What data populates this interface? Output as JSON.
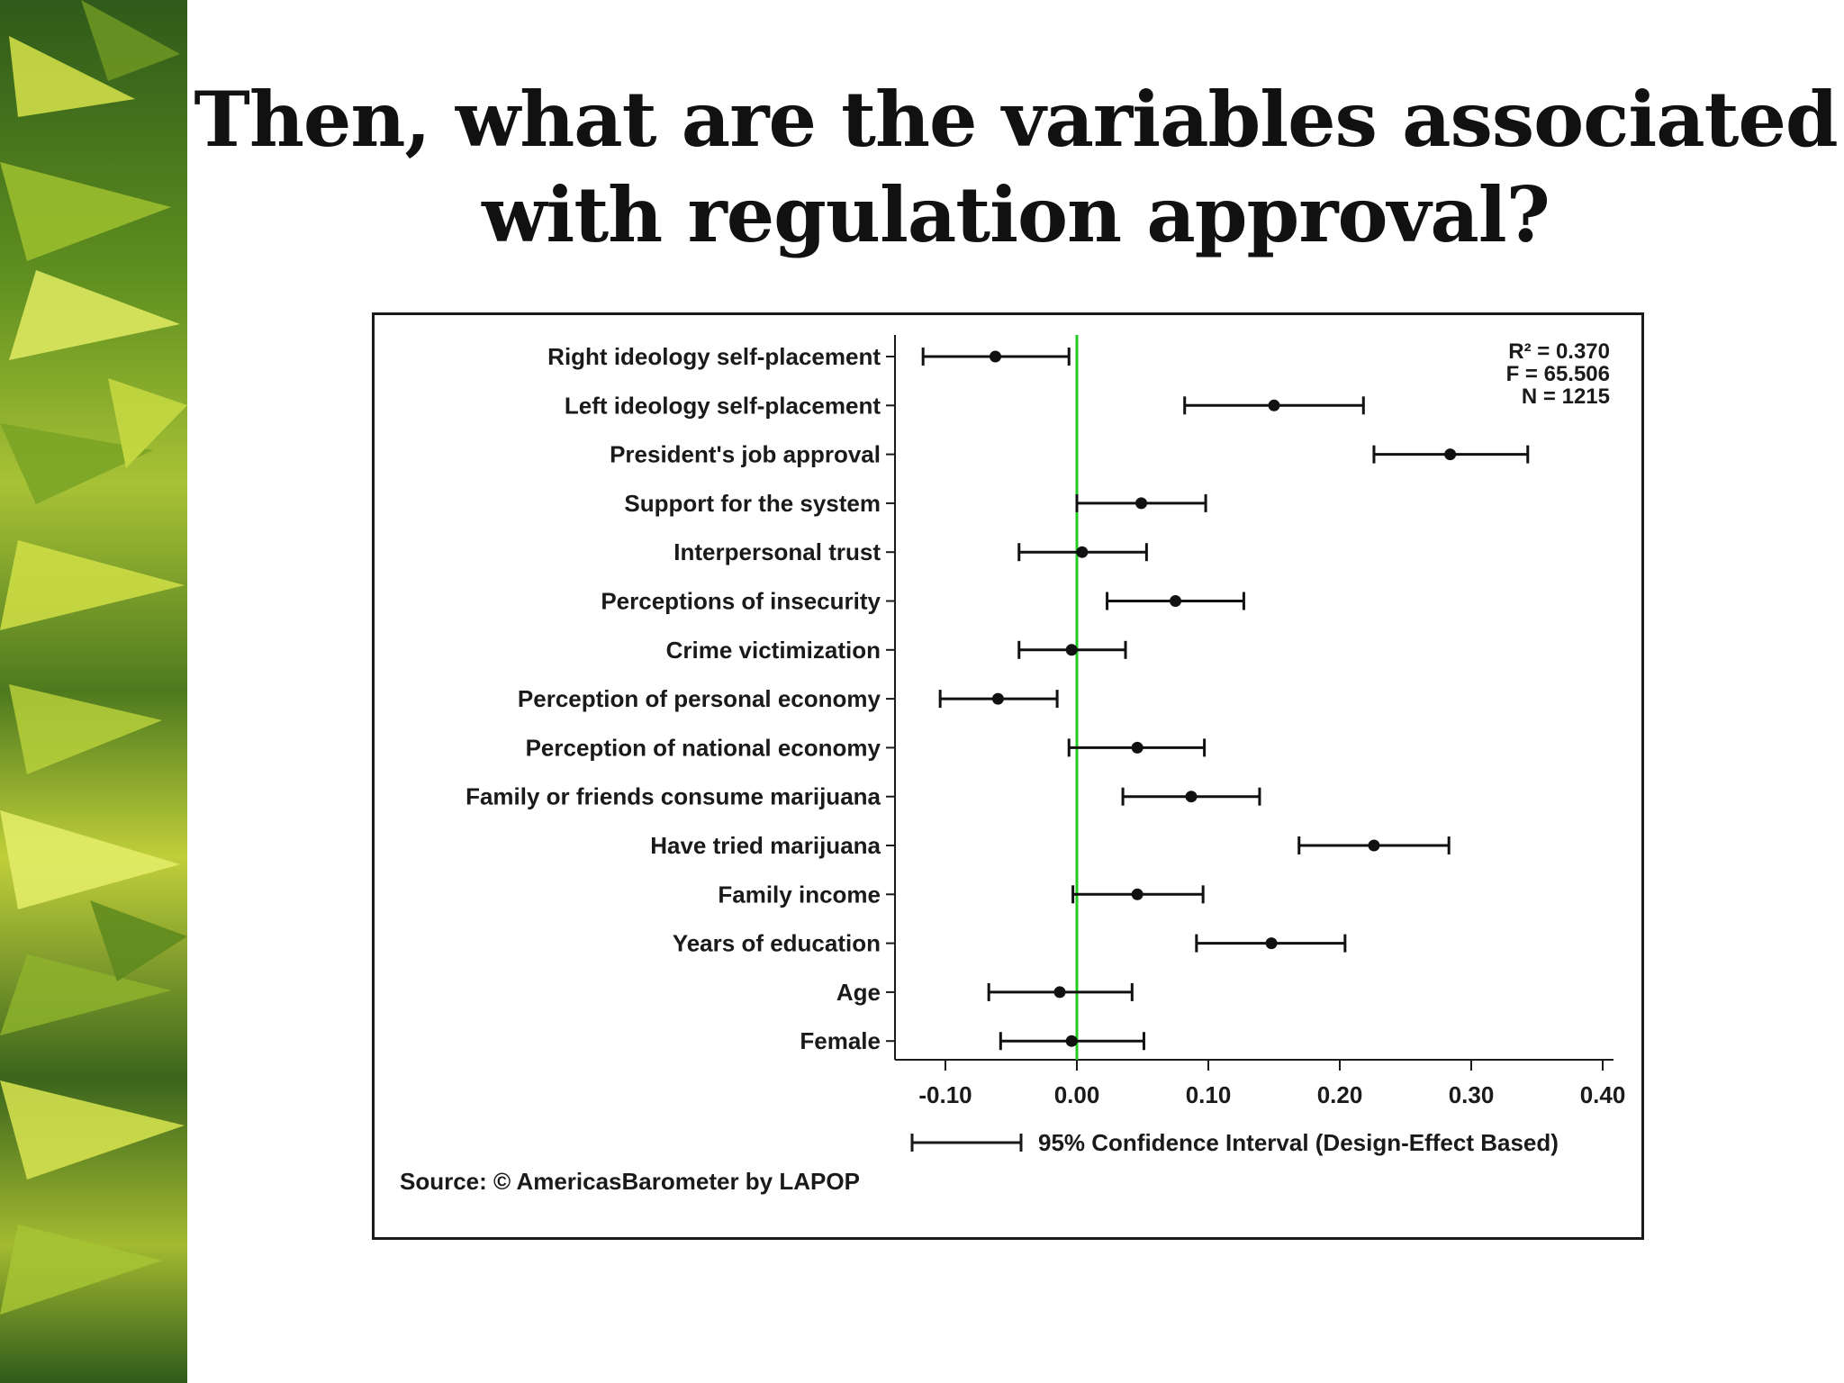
{
  "slide": {
    "title_line1": "Then, what are the variables associated",
    "title_line2": "with regulation approval?"
  },
  "chart_data": {
    "type": "scatter",
    "categories": [
      "Right ideology self-placement",
      "Left ideology self-placement",
      "President's job approval",
      "Support for the system",
      "Interpersonal trust",
      "Perceptions of insecurity",
      "Crime victimization",
      "Perception of personal economy",
      "Perception of national economy",
      "Family or friends consume marijuana",
      "Have tried marijuana",
      "Family income",
      "Years of education",
      "Age",
      "Female"
    ],
    "estimates": [
      -0.062,
      0.15,
      0.284,
      0.049,
      0.004,
      0.075,
      -0.004,
      -0.06,
      0.046,
      0.087,
      0.226,
      0.046,
      0.148,
      -0.013,
      -0.004
    ],
    "ci_low": [
      -0.117,
      0.082,
      0.226,
      0.0,
      -0.044,
      0.023,
      -0.044,
      -0.104,
      -0.006,
      0.035,
      0.169,
      -0.003,
      0.091,
      -0.067,
      -0.058
    ],
    "ci_high": [
      -0.006,
      0.218,
      0.343,
      0.098,
      0.053,
      0.127,
      0.037,
      -0.015,
      0.097,
      0.139,
      0.283,
      0.096,
      0.204,
      0.042,
      0.051
    ],
    "xlim": [
      -0.13,
      0.42
    ],
    "x_ticks": [
      -0.1,
      0.0,
      0.1,
      0.2,
      0.3,
      0.4
    ],
    "x_tick_labels": [
      "-0.10",
      "0.00",
      "0.10",
      "0.20",
      "0.30",
      "0.40"
    ],
    "reference_line": 0,
    "reference_line_color": "#22cc22",
    "point_color": "#111111",
    "stats": [
      "R² = 0.370",
      "F = 65.506",
      "N = 1215"
    ],
    "legend_label": "95% Confidence Interval (Design-Effect Based)",
    "legend_position": "bottom",
    "source": "Source: © AmericasBarometer by LAPOP"
  }
}
